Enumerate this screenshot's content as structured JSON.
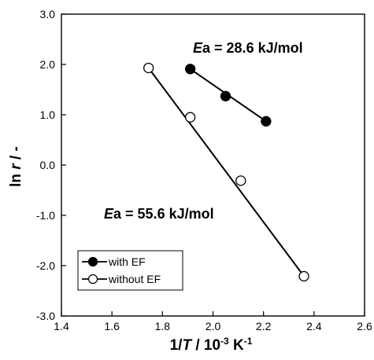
{
  "chart_data": {
    "type": "scatter",
    "xlabel_parts": [
      "1/",
      "T",
      " / 10",
      "-3",
      " K",
      "-1"
    ],
    "ylabel_parts": [
      "ln ",
      "r",
      " / -"
    ],
    "xlim": [
      1.4,
      2.6
    ],
    "ylim": [
      -3.0,
      3.0
    ],
    "x_ticks": [
      1.4,
      1.6,
      1.8,
      2.0,
      2.2,
      2.4,
      2.6
    ],
    "y_ticks": [
      -3.0,
      -2.0,
      -1.0,
      0.0,
      1.0,
      2.0,
      3.0
    ],
    "x_tick_labels": [
      "1.4",
      "1.6",
      "1.8",
      "2.0",
      "2.2",
      "2.4",
      "2.6"
    ],
    "y_tick_labels": [
      "-3.0",
      "-2.0",
      "-1.0",
      "0.0",
      "1.0",
      "2.0",
      "3.0"
    ],
    "grid": false,
    "legend_position": "bottom-left",
    "series": [
      {
        "name": "with EF",
        "marker": "filled-circle",
        "color": "#000000",
        "x": [
          1.91,
          2.05,
          2.21
        ],
        "y": [
          1.91,
          1.37,
          0.87
        ],
        "fit": [
          [
            1.91,
            1.91
          ],
          [
            2.21,
            0.87
          ]
        ]
      },
      {
        "name": "without EF",
        "marker": "open-circle",
        "color": "#000000",
        "x": [
          1.745,
          1.91,
          2.11,
          2.36
        ],
        "y": [
          1.93,
          0.95,
          -0.31,
          -2.21
        ],
        "fit": [
          [
            1.745,
            1.93
          ],
          [
            2.36,
            -2.21
          ]
        ]
      }
    ],
    "annotations": [
      {
        "italic": "E",
        "rest": "a = 28.6 kJ/mol"
      },
      {
        "italic": "E",
        "rest": "a = 55.6 kJ/mol"
      }
    ]
  }
}
